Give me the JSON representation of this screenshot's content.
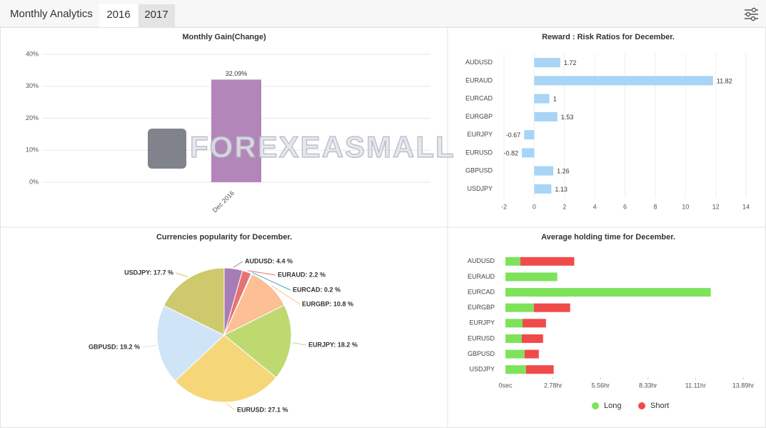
{
  "header": {
    "title": "Monthly Analytics",
    "tabs": [
      "2016",
      "2017"
    ]
  },
  "watermark": "FOREXEASMALL",
  "chart_data": [
    {
      "type": "bar",
      "title": "Monthly Gain(Change)",
      "categories": [
        "Dec 2016"
      ],
      "values": [
        32.09
      ],
      "value_labels": [
        "32.09%"
      ],
      "color": "#b286b8",
      "ylim": [
        0,
        40
      ],
      "yticks": [
        {
          "value": 0,
          "label": "0%"
        },
        {
          "value": 10,
          "label": "10%"
        },
        {
          "value": 20,
          "label": "20%"
        },
        {
          "value": 30,
          "label": "30%"
        },
        {
          "value": 40,
          "label": "40%"
        }
      ],
      "grid": true
    },
    {
      "type": "hbar",
      "title": "Reward : Risk Ratios for December.",
      "categories": [
        "AUDUSD",
        "EURAUD",
        "EURCAD",
        "EURGBP",
        "EURJPY",
        "EURUSD",
        "GBPUSD",
        "USDJPY"
      ],
      "values": [
        1.72,
        11.82,
        1,
        1.53,
        -0.67,
        -0.82,
        1.26,
        1.13
      ],
      "color": "#a8d4f5",
      "xlim": [
        -2,
        14
      ],
      "xticks": [
        -2,
        0,
        2,
        4,
        6,
        8,
        10,
        12,
        14
      ],
      "grid": true
    },
    {
      "type": "pie",
      "title": "Currencies popularity for December.",
      "categories": [
        "AUDUSD",
        "EURAUD",
        "EURCAD",
        "EURGBP",
        "EURJPY",
        "EURUSD",
        "GBPUSD",
        "USDJPY"
      ],
      "values": [
        4.4,
        2.2,
        0.2,
        10.8,
        18.2,
        27.1,
        19.2,
        17.7
      ],
      "value_labels": [
        "AUDUSD: 4.4 %",
        "EURAUD: 2.2 %",
        "EURCAD: 0.2 %",
        "EURGBP: 10.8 %",
        "EURJPY: 18.2 %",
        "EURUSD: 27.1 %",
        "GBPUSD: 19.2 %",
        "USDJPY: 17.7 %"
      ],
      "colors": [
        "#a87cb5",
        "#e57373",
        "#4aa6c9",
        "#fdbf94",
        "#bdd96f",
        "#f5d77a",
        "#cfe4f7",
        "#cfc96d"
      ]
    },
    {
      "type": "stacked_hbar",
      "title": "Average holding time for December.",
      "categories": [
        "AUDUSD",
        "EURAUD",
        "EURCAD",
        "EURGBP",
        "EURJPY",
        "EURUSD",
        "GBPUSD",
        "USDJPY"
      ],
      "series": [
        {
          "name": "Long",
          "color": "#7ee35a",
          "values": [
            0.87,
            3.03,
            12.0,
            1.66,
            1.0,
            0.95,
            1.12,
            1.2
          ]
        },
        {
          "name": "Short",
          "color": "#f04b4b",
          "values": [
            3.15,
            0,
            0,
            2.12,
            1.37,
            1.25,
            0.83,
            1.62
          ]
        }
      ],
      "xlim": [
        0,
        13.89
      ],
      "xticks": [
        {
          "value": 0,
          "label": "0sec"
        },
        {
          "value": 2.78,
          "label": "2.78hr"
        },
        {
          "value": 5.56,
          "label": "5.56hr"
        },
        {
          "value": 8.33,
          "label": "8.33hr"
        },
        {
          "value": 11.11,
          "label": "11.11hr"
        },
        {
          "value": 13.89,
          "label": "13.89hr"
        }
      ],
      "legend": "bottom"
    }
  ]
}
